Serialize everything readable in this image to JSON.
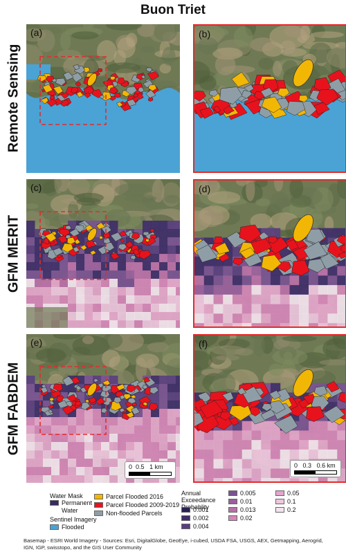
{
  "title": "Buon Triet",
  "rows": [
    {
      "label": "Remote Sensing",
      "panels": [
        "(a)",
        "(b)"
      ],
      "style": "remote"
    },
    {
      "label": "GFM MERIT",
      "panels": [
        "(c)",
        "(d)"
      ],
      "style": "merit"
    },
    {
      "label": "GFM FABDEM",
      "panels": [
        "(e)",
        "(f)"
      ],
      "style": "fabdem"
    }
  ],
  "scalebars": {
    "left": {
      "ticks": [
        "0",
        "0.5",
        "1 km"
      ]
    },
    "right": {
      "ticks": [
        "0",
        "0.3",
        "0.6 km"
      ]
    }
  },
  "legend": {
    "water_mask_title": "Water Mask",
    "permanent_water": "Permanent Water",
    "sentinel_title": "Sentinel Imagery",
    "flooded": "Flooded",
    "parcel_2016": "Parcel Flooded 2016",
    "parcel_2009_2019": "Parcel Flooded 2009-2019",
    "non_flooded": "Non-flooded Parcels",
    "aep_title": "Annual Exceedance Probablity",
    "aep_values": [
      "0.001",
      "0.002",
      "0.004",
      "0.005",
      "0.01",
      "0.013",
      "0.02",
      "0.05",
      "0.1",
      "0.2"
    ]
  },
  "colors": {
    "permanent_water": "#3b2a63",
    "flooded": "#4aa3d4",
    "parcel_2016": "#f2b705",
    "parcel_2009_2019": "#e8121d",
    "non_flooded": "#8f9ea6",
    "aep": [
      "#2a2050",
      "#3f2e6a",
      "#5a3f80",
      "#7a5292",
      "#9a5f9e",
      "#b870a8",
      "#d487b8",
      "#e4a6cc",
      "#eec6de",
      "#f4e4ef"
    ],
    "zoom_frame": "#e32b2b"
  },
  "basemap_credit": "Basemap - ESRI World Imagery - Sources: Esri, DigitalGlobe, GeoEye, i-cubed, USDA FSA, USGS, AEX, Getmapping, Aerogrid, IGN, IGP, swisstopo, and the GIS User Community"
}
